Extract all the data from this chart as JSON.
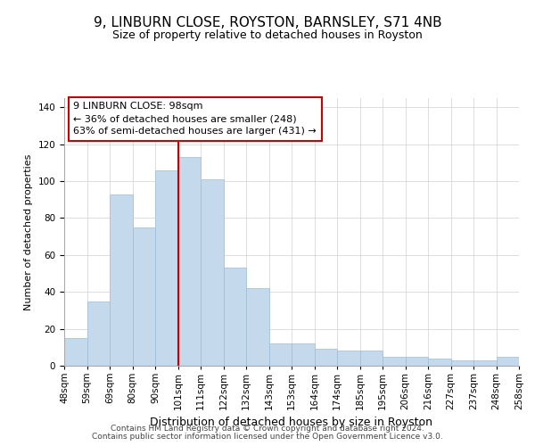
{
  "title": "9, LINBURN CLOSE, ROYSTON, BARNSLEY, S71 4NB",
  "subtitle": "Size of property relative to detached houses in Royston",
  "xlabel": "Distribution of detached houses by size in Royston",
  "ylabel": "Number of detached properties",
  "bar_labels": [
    "48sqm",
    "59sqm",
    "69sqm",
    "80sqm",
    "90sqm",
    "101sqm",
    "111sqm",
    "122sqm",
    "132sqm",
    "143sqm",
    "153sqm",
    "164sqm",
    "174sqm",
    "185sqm",
    "195sqm",
    "206sqm",
    "216sqm",
    "227sqm",
    "237sqm",
    "248sqm",
    "258sqm"
  ],
  "bar_heights": [
    15,
    35,
    93,
    75,
    106,
    113,
    101,
    53,
    42,
    12,
    12,
    9,
    8,
    8,
    5,
    5,
    4,
    3,
    3,
    5
  ],
  "bar_color": "#c5d9ed",
  "bar_edge_color": "#9dbdd8",
  "vline_x_index": 5,
  "vline_color": "#cc0000",
  "ylim": [
    0,
    145
  ],
  "yticks": [
    0,
    20,
    40,
    60,
    80,
    100,
    120,
    140
  ],
  "annotation_line1": "9 LINBURN CLOSE: 98sqm",
  "annotation_line2": "← 36% of detached houses are smaller (248)",
  "annotation_line3": "63% of semi-detached houses are larger (431) →",
  "annotation_box_color": "#ffffff",
  "annotation_box_edge": "#cc0000",
  "footer_line1": "Contains HM Land Registry data © Crown copyright and database right 2024.",
  "footer_line2": "Contains public sector information licensed under the Open Government Licence v3.0.",
  "title_fontsize": 11,
  "subtitle_fontsize": 9,
  "annotation_fontsize": 8,
  "ylabel_fontsize": 8,
  "xlabel_fontsize": 9,
  "footer_fontsize": 6.5,
  "tick_fontsize": 7.5
}
